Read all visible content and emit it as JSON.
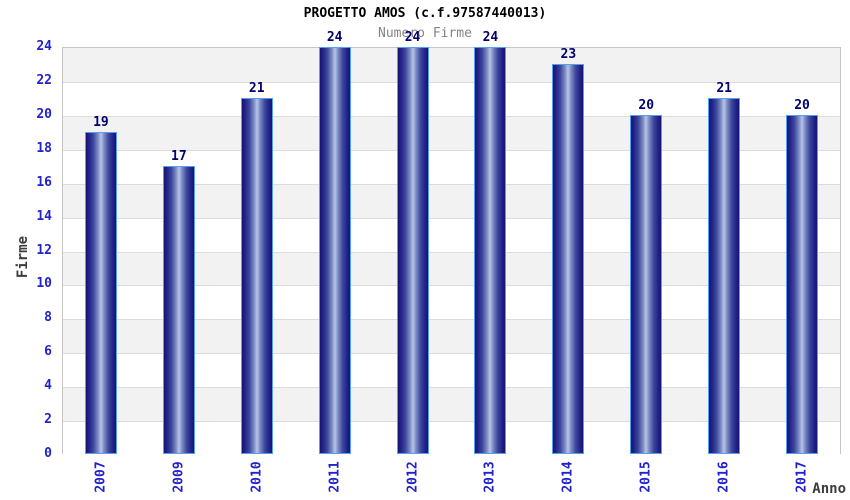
{
  "header": {
    "title": "PROGETTO AMOS (c.f.97587440013)",
    "subtitle": "Numero Firme"
  },
  "chart_data": {
    "type": "bar",
    "title": "PROGETTO AMOS (c.f.97587440013)",
    "subtitle": "Numero Firme",
    "xlabel": "Anno",
    "ylabel": "Firme",
    "categories": [
      "2007",
      "2009",
      "2010",
      "2011",
      "2012",
      "2013",
      "2014",
      "2015",
      "2016",
      "2017"
    ],
    "values": [
      19,
      17,
      21,
      24,
      24,
      24,
      23,
      20,
      21,
      20
    ],
    "ylim": [
      0,
      24
    ],
    "yticks": [
      0,
      2,
      4,
      6,
      8,
      10,
      12,
      14,
      16,
      18,
      20,
      22,
      24
    ],
    "grid": "horizontal-bands-alternating",
    "legend": "none",
    "colors": {
      "bar_dark": "#14146e",
      "bar_light": "#b9c4e8",
      "bar_border": "#55a1f0",
      "band_gray": "#f2f2f2",
      "band_white": "#ffffff",
      "gridline": "#dcdcdc",
      "plot_border": "#c6c6c6",
      "tick_label_blue": "#2222cc",
      "value_label_navy": "#000070",
      "title_color": "#000000",
      "subtitle_gray": "#848484",
      "axis_title_gray": "#3c3c3c"
    }
  }
}
